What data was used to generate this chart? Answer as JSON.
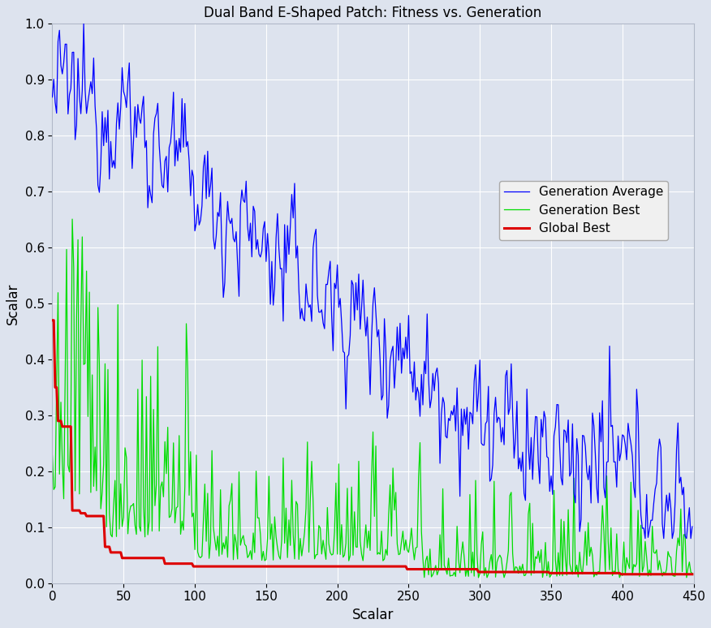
{
  "title": "Dual Band E-Shaped Patch: Fitness vs. Generation",
  "xlabel": "Scalar",
  "ylabel": "Scalar",
  "xlim": [
    0,
    450
  ],
  "ylim": [
    0,
    1
  ],
  "legend_entries": [
    "Generation Average",
    "Generation Best",
    "Global Best"
  ],
  "legend_colors": [
    "#0000ff",
    "#00dd00",
    "#dd0000"
  ],
  "bg_color": "#dde3ee",
  "grid_color": "#ffffff",
  "figsize": [
    8.76,
    7.74
  ],
  "dpi": 100,
  "n_generations": 450,
  "global_best_steps": [
    [
      0,
      0.47
    ],
    [
      2,
      0.35
    ],
    [
      4,
      0.29
    ],
    [
      7,
      0.28
    ],
    [
      14,
      0.13
    ],
    [
      20,
      0.125
    ],
    [
      24,
      0.12
    ],
    [
      37,
      0.065
    ],
    [
      41,
      0.055
    ],
    [
      49,
      0.045
    ],
    [
      79,
      0.035
    ],
    [
      99,
      0.03
    ],
    [
      249,
      0.025
    ],
    [
      299,
      0.02
    ],
    [
      349,
      0.018
    ],
    [
      399,
      0.016
    ]
  ]
}
